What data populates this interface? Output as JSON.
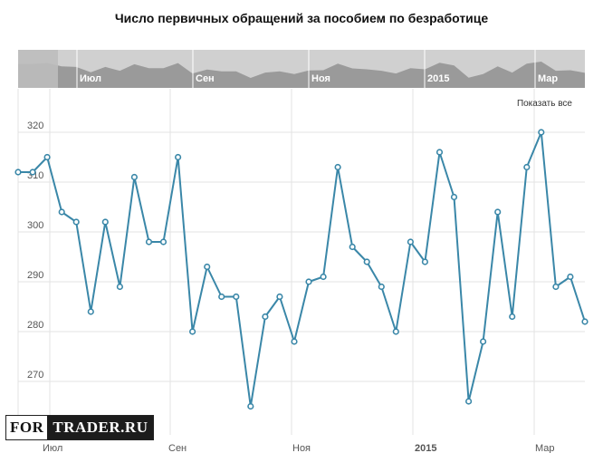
{
  "chart_data": {
    "type": "line",
    "title": "Число первичных обращений за пособием по безработице",
    "show_all_label": "Показать все",
    "watermark": {
      "left": "FOR",
      "right": "TRADER.RU"
    },
    "y_ticks": [
      270,
      280,
      290,
      300,
      310,
      320
    ],
    "ylim": [
      260,
      328
    ],
    "x_labels": [
      {
        "label": "Июл",
        "bold": false
      },
      {
        "label": "Сен",
        "bold": false
      },
      {
        "label": "Ноя",
        "bold": false
      },
      {
        "label": "2015",
        "bold": true
      },
      {
        "label": "Мар",
        "bold": false
      }
    ],
    "navigator_labels": [
      "Июл",
      "Сен",
      "Ноя",
      "2015",
      "Мар"
    ],
    "line_color": "#3a87a8",
    "grid": true,
    "series": [
      {
        "values": [
          312,
          312,
          315,
          304,
          302,
          284,
          302,
          289,
          311,
          298,
          298,
          315,
          280,
          293,
          287,
          287,
          265,
          283,
          287,
          278,
          290,
          291,
          313,
          297,
          294,
          289,
          280,
          298,
          294,
          316,
          307,
          266,
          278,
          304,
          283,
          313,
          320,
          289,
          291,
          282
        ]
      }
    ]
  }
}
